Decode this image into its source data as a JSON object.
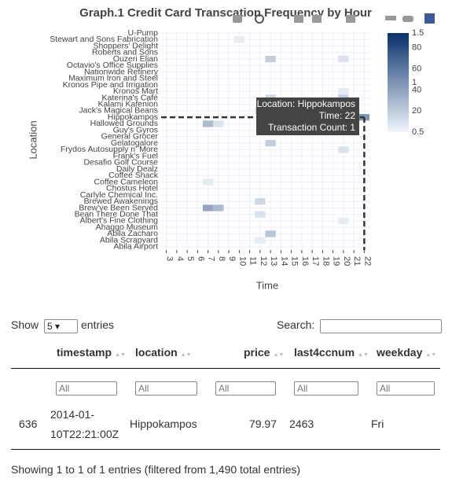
{
  "chart_data": {
    "type": "heatmap",
    "title": "Graph.1 Credit Card Transcation Frequency by Hour",
    "x_label": "Time",
    "y_label": "Location",
    "categories": [
      "Abila Airport",
      "Abila Scrapyard",
      "Abila Zacharo",
      "Ahaggo Museum",
      "Albert's Fine Clothing",
      "Bean There Done That",
      "Brew've Been Served",
      "Brewed Awakenings",
      "Carlyle Chemical Inc.",
      "Chostus Hotel",
      "Coffee Cameleon",
      "Coffee Shack",
      "Daily Dealz",
      "Desafio Golf Course",
      "Frank's Fuel",
      "Frydos Autosupply n' More",
      "Gelatogalore",
      "General Grocer",
      "Guy's Gyros",
      "Hallowed Grounds",
      "Hippokampos",
      "Jack's Magical Beans",
      "Kalami Kafenion",
      "Katerina's Café",
      "Kronos Mart",
      "Kronos Pipe and Irrigation",
      "Maximum Iron and Steel",
      "Nationwide Refinery",
      "Octavio's Office Supplies",
      "Ouzeri Elian",
      "Roberts and Sons",
      "Shoppers' Delight",
      "Stewart and Sons Fabrication",
      "U-Pump"
    ],
    "xlim": [
      2.5,
      22.5
    ],
    "xticks": [
      3,
      4,
      5,
      6,
      7,
      8,
      9,
      10,
      11,
      12,
      13,
      14,
      15,
      16,
      17,
      18,
      19,
      20,
      21,
      22
    ],
    "cells": {
      "x": [
        10,
        13,
        20,
        13,
        20,
        20,
        12,
        20,
        22,
        7,
        8,
        13,
        20,
        7,
        12,
        7,
        8,
        12,
        20,
        13,
        12
      ],
      "location": [
        "Stewart and Sons Fabrication",
        "Ouzeri Elian",
        "Ouzeri Elian",
        "Katerina's Café",
        "Katerina's Café",
        "Kronos Mart",
        "Jack's Magical Beans",
        "Jack's Magical Beans",
        "Hippokampos",
        "Hallowed Grounds",
        "Hallowed Grounds",
        "Gelatogalore",
        "Frydos Autosupply n' More",
        "Coffee Cameleon",
        "Brewed Awakenings",
        "Brew've Been Served",
        "Brew've Been Served",
        "Bean There Done That",
        "Albert's Fine Clothing",
        "Abila Zacharo",
        "Abila Scrapyard"
      ],
      "values": [
        0.55,
        0.7,
        0.6,
        0.65,
        0.7,
        0.55,
        0.6,
        0.6,
        1,
        0.8,
        0.6,
        0.7,
        0.6,
        0.55,
        0.65,
        0.9,
        0.8,
        0.6,
        0.55,
        0.75,
        0.55
      ]
    },
    "zlim": [
      0.5,
      1.5
    ],
    "zticks": [
      0.5,
      1,
      1.5
    ],
    "z2lim": [
      0,
      94
    ],
    "z2ticks": [
      20,
      40,
      60,
      80
    ],
    "colors": [
      "#f0f6fc",
      "#08306b"
    ],
    "tooltip": [
      "Location: Hippokampos",
      "Time: 22",
      "Transaction Count: 1"
    ]
  },
  "table": {
    "show": "Show",
    "length": "5",
    "entries": "entries",
    "search": "Search:",
    "columns": [
      "timestamp",
      "location",
      "price",
      "last4ccnum",
      "weekday"
    ],
    "filters": [
      "All",
      "All",
      "All",
      "All",
      "All"
    ],
    "rows": [
      [
        "636",
        "2014-01-",
        "10T22:21:00Z",
        "Hippokampos",
        "79.97",
        "2463",
        "Fri"
      ]
    ],
    "info": "Showing 1 to 1 of 1 entries (filtered from 1,490 total entries)"
  }
}
